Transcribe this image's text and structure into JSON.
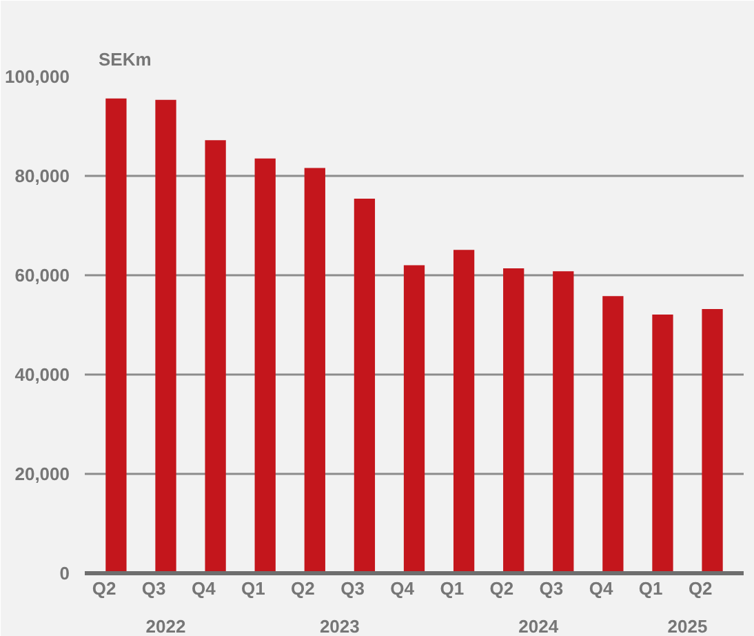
{
  "chart_data": {
    "type": "bar",
    "ylabel": "SEKm",
    "categories": [
      "Q2",
      "Q3",
      "Q4",
      "Q1",
      "Q2",
      "Q3",
      "Q4",
      "Q1",
      "Q2",
      "Q3",
      "Q4",
      "Q1",
      "Q2"
    ],
    "annotations": [
      "2022",
      "2023",
      "2024",
      "2025"
    ],
    "values": [
      95600,
      95300,
      87200,
      83500,
      81600,
      75400,
      62000,
      65100,
      61400,
      60800,
      55800,
      52100,
      53200
    ],
    "color": "#c4161c",
    "ylim": [
      0,
      100000
    ],
    "yticks": [
      {
        "value": 0,
        "label": "0"
      },
      {
        "value": 20000,
        "label": "20,000"
      },
      {
        "value": 40000,
        "label": "40,000"
      },
      {
        "value": 60000,
        "label": "60,000"
      },
      {
        "value": 80000,
        "label": "80,000"
      },
      {
        "value": 100000,
        "label": "100,000"
      }
    ],
    "grid": "y"
  }
}
